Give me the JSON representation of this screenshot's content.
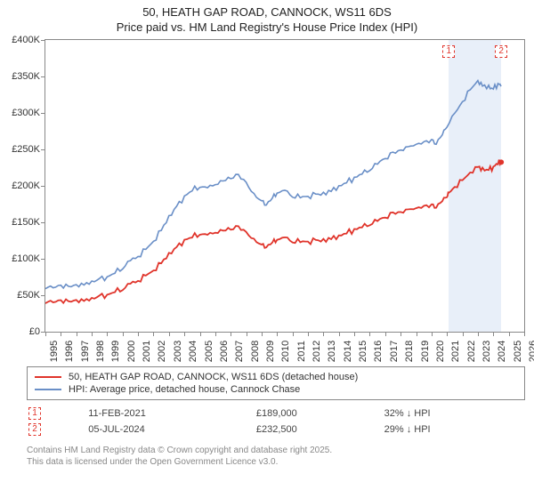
{
  "title_line1": "50, HEATH GAP ROAD, CANNOCK, WS11 6DS",
  "title_line2": "Price paid vs. HM Land Registry's House Price Index (HPI)",
  "chart": {
    "type": "line",
    "background_color": "#ffffff",
    "axis_color": "#888888",
    "xlim": [
      1995,
      2026
    ],
    "ylim": [
      0,
      400000
    ],
    "ytick_step": 50000,
    "yticks": [
      "£0",
      "£50K",
      "£100K",
      "£150K",
      "£200K",
      "£250K",
      "£300K",
      "£350K",
      "£400K"
    ],
    "xticks": [
      1995,
      1996,
      1997,
      1998,
      1999,
      2000,
      2001,
      2002,
      2003,
      2004,
      2005,
      2006,
      2007,
      2008,
      2009,
      2010,
      2011,
      2012,
      2013,
      2014,
      2015,
      2016,
      2017,
      2018,
      2019,
      2020,
      2021,
      2022,
      2023,
      2024,
      2025,
      2026
    ],
    "shade_band": {
      "from": 2021.12,
      "to": 2024.51,
      "color": "#e8eff9"
    },
    "series": [
      {
        "name": "hpi",
        "color": "#6a8fc7",
        "width": 1.6,
        "points": [
          [
            1995.0,
            60000
          ],
          [
            1995.5,
            61000
          ],
          [
            1996.0,
            62000
          ],
          [
            1996.5,
            62500
          ],
          [
            1997.0,
            64000
          ],
          [
            1997.5,
            66000
          ],
          [
            1998.0,
            69000
          ],
          [
            1998.5,
            72000
          ],
          [
            1999.0,
            75000
          ],
          [
            1999.5,
            80000
          ],
          [
            2000.0,
            88000
          ],
          [
            2000.5,
            96000
          ],
          [
            2001.0,
            103000
          ],
          [
            2001.5,
            112000
          ],
          [
            2002.0,
            125000
          ],
          [
            2002.5,
            140000
          ],
          [
            2003.0,
            158000
          ],
          [
            2003.5,
            172000
          ],
          [
            2004.0,
            185000
          ],
          [
            2004.5,
            195000
          ],
          [
            2005.0,
            198000
          ],
          [
            2005.5,
            197000
          ],
          [
            2006.0,
            201000
          ],
          [
            2006.5,
            206000
          ],
          [
            2007.0,
            212000
          ],
          [
            2007.5,
            215000
          ],
          [
            2008.0,
            205000
          ],
          [
            2008.5,
            188000
          ],
          [
            2009.0,
            180000
          ],
          [
            2009.3,
            175000
          ],
          [
            2009.7,
            183000
          ],
          [
            2010.0,
            190000
          ],
          [
            2010.5,
            192000
          ],
          [
            2011.0,
            186000
          ],
          [
            2011.5,
            184000
          ],
          [
            2012.0,
            186000
          ],
          [
            2012.5,
            188000
          ],
          [
            2013.0,
            190000
          ],
          [
            2013.5,
            194000
          ],
          [
            2014.0,
            200000
          ],
          [
            2014.5,
            205000
          ],
          [
            2015.0,
            210000
          ],
          [
            2015.5,
            216000
          ],
          [
            2016.0,
            222000
          ],
          [
            2016.5,
            230000
          ],
          [
            2017.0,
            238000
          ],
          [
            2017.5,
            244000
          ],
          [
            2018.0,
            250000
          ],
          [
            2018.5,
            254000
          ],
          [
            2019.0,
            258000
          ],
          [
            2019.5,
            260000
          ],
          [
            2020.0,
            262000
          ],
          [
            2020.3,
            258000
          ],
          [
            2020.7,
            270000
          ],
          [
            2021.0,
            282000
          ],
          [
            2021.5,
            298000
          ],
          [
            2022.0,
            315000
          ],
          [
            2022.5,
            332000
          ],
          [
            2023.0,
            345000
          ],
          [
            2023.3,
            338000
          ],
          [
            2023.7,
            336000
          ],
          [
            2024.0,
            333000
          ],
          [
            2024.3,
            340000
          ],
          [
            2024.5,
            338000
          ]
        ]
      },
      {
        "name": "price_paid",
        "color": "#e0342b",
        "width": 1.8,
        "points": [
          [
            1995.0,
            40000
          ],
          [
            1995.5,
            41000
          ],
          [
            1996.0,
            41500
          ],
          [
            1996.5,
            42000
          ],
          [
            1997.0,
            43000
          ],
          [
            1997.5,
            44000
          ],
          [
            1998.0,
            46000
          ],
          [
            1998.5,
            48500
          ],
          [
            1999.0,
            50500
          ],
          [
            1999.5,
            54000
          ],
          [
            2000.0,
            59000
          ],
          [
            2000.5,
            64500
          ],
          [
            2001.0,
            69500
          ],
          [
            2001.5,
            76000
          ],
          [
            2002.0,
            85000
          ],
          [
            2002.5,
            95000
          ],
          [
            2003.0,
            107000
          ],
          [
            2003.5,
            116000
          ],
          [
            2004.0,
            125000
          ],
          [
            2004.5,
            131000
          ],
          [
            2005.0,
            133000
          ],
          [
            2005.5,
            132500
          ],
          [
            2006.0,
            135000
          ],
          [
            2006.5,
            138000
          ],
          [
            2007.0,
            142000
          ],
          [
            2007.5,
            144000
          ],
          [
            2008.0,
            137000
          ],
          [
            2008.5,
            126000
          ],
          [
            2009.0,
            120000
          ],
          [
            2009.3,
            117000
          ],
          [
            2009.7,
            122000
          ],
          [
            2010.0,
            126000
          ],
          [
            2010.5,
            127500
          ],
          [
            2011.0,
            124000
          ],
          [
            2011.5,
            123000
          ],
          [
            2012.0,
            124000
          ],
          [
            2012.5,
            125000
          ],
          [
            2013.0,
            126000
          ],
          [
            2013.5,
            128500
          ],
          [
            2014.0,
            132000
          ],
          [
            2014.5,
            135500
          ],
          [
            2015.0,
            139000
          ],
          [
            2015.5,
            143000
          ],
          [
            2016.0,
            147000
          ],
          [
            2016.5,
            152000
          ],
          [
            2017.0,
            157000
          ],
          [
            2017.5,
            161500
          ],
          [
            2018.0,
            165000
          ],
          [
            2018.5,
            168000
          ],
          [
            2019.0,
            170500
          ],
          [
            2019.5,
            172000
          ],
          [
            2020.0,
            173000
          ],
          [
            2020.3,
            171000
          ],
          [
            2020.7,
            179000
          ],
          [
            2021.0,
            186000
          ],
          [
            2021.12,
            189000
          ],
          [
            2021.5,
            198000
          ],
          [
            2022.0,
            208000
          ],
          [
            2022.5,
            219000
          ],
          [
            2023.0,
            227000
          ],
          [
            2023.3,
            223000
          ],
          [
            2023.7,
            222000
          ],
          [
            2024.0,
            226000
          ],
          [
            2024.3,
            231000
          ],
          [
            2024.51,
            232500
          ]
        ],
        "end_marker": {
          "shape": "circle",
          "radius": 3
        }
      }
    ],
    "markers": [
      {
        "id": "1",
        "x": 2021.12,
        "top": true
      },
      {
        "id": "2",
        "x": 2024.51,
        "top": true
      }
    ]
  },
  "legend": {
    "rows": [
      {
        "color": "#e0342b",
        "label": "50, HEATH GAP ROAD, CANNOCK, WS11 6DS (detached house)"
      },
      {
        "color": "#6a8fc7",
        "label": "HPI: Average price, detached house, Cannock Chase"
      }
    ]
  },
  "transactions": [
    {
      "marker": "1",
      "date": "11-FEB-2021",
      "price": "£189,000",
      "delta": "32% ↓ HPI"
    },
    {
      "marker": "2",
      "date": "05-JUL-2024",
      "price": "£232,500",
      "delta": "29% ↓ HPI"
    }
  ],
  "attribution_line1": "Contains HM Land Registry data © Crown copyright and database right 2025.",
  "attribution_line2": "This data is licensed under the Open Government Licence v3.0."
}
